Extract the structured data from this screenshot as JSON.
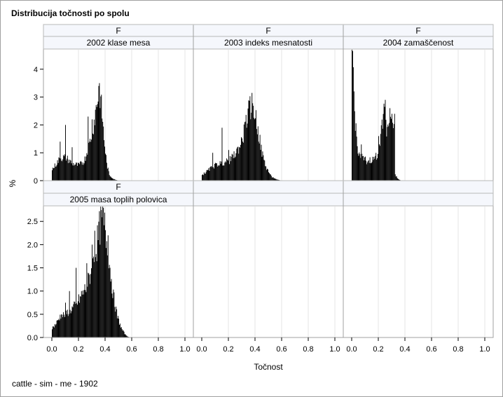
{
  "title": "Distribucija točnosti po spolu",
  "footnote": "cattle - sim - me - 1902",
  "chart_data": {
    "type": "bar",
    "xlabel": "Točnost",
    "ylabel": "%",
    "xlim": [
      0.0,
      1.0
    ],
    "xticks": [
      "0.0",
      "0.2",
      "0.4",
      "0.6",
      "0.8",
      "1.0"
    ],
    "row_header": "F",
    "rows": [
      {
        "ylim": [
          0,
          4.7
        ],
        "yticks": [
          "0",
          "1",
          "2",
          "3",
          "4"
        ],
        "panels": [
          {
            "header": "F",
            "label": "2002 klase mesa",
            "peaks": [
              [
                0.0,
                0.4
              ],
              [
                0.03,
                0.6
              ],
              [
                0.06,
                0.8
              ],
              [
                0.1,
                0.85
              ],
              [
                0.13,
                0.7
              ],
              [
                0.16,
                0.6
              ],
              [
                0.2,
                0.55
              ],
              [
                0.24,
                0.7
              ],
              [
                0.28,
                1.3
              ],
              [
                0.31,
                2.0
              ],
              [
                0.34,
                2.9
              ],
              [
                0.355,
                3.3
              ],
              [
                0.375,
                2.4
              ],
              [
                0.39,
                1.5
              ],
              [
                0.41,
                0.6
              ],
              [
                0.43,
                0.2
              ],
              [
                0.46,
                0.06
              ],
              [
                0.5,
                0.0
              ]
            ],
            "spikes": [
              [
                0.06,
                1.4
              ],
              [
                0.1,
                2.0
              ],
              [
                0.15,
                1.2
              ],
              [
                0.27,
                2.3
              ],
              [
                0.3,
                2.2
              ],
              [
                0.35,
                3.4
              ]
            ]
          },
          {
            "header": "F",
            "label": "2003 indeks mesnatosti",
            "peaks": [
              [
                0.0,
                0.2
              ],
              [
                0.04,
                0.35
              ],
              [
                0.08,
                0.5
              ],
              [
                0.12,
                0.6
              ],
              [
                0.16,
                0.65
              ],
              [
                0.2,
                0.7
              ],
              [
                0.24,
                0.9
              ],
              [
                0.28,
                1.2
              ],
              [
                0.31,
                1.6
              ],
              [
                0.34,
                2.3
              ],
              [
                0.37,
                2.75
              ],
              [
                0.39,
                2.6
              ],
              [
                0.42,
                1.8
              ],
              [
                0.45,
                1.0
              ],
              [
                0.48,
                0.5
              ],
              [
                0.52,
                0.15
              ],
              [
                0.56,
                0.04
              ],
              [
                0.6,
                0.0
              ]
            ],
            "spikes": [
              [
                0.08,
                1.0
              ],
              [
                0.15,
                1.9
              ],
              [
                0.2,
                1.1
              ],
              [
                0.32,
                2.1
              ],
              [
                0.36,
                2.8
              ]
            ]
          },
          {
            "header": "F",
            "label": "2004 zamaščenost",
            "peaks": [
              [
                0.0,
                4.6
              ],
              [
                0.01,
                3.8
              ],
              [
                0.02,
                2.4
              ],
              [
                0.04,
                1.2
              ],
              [
                0.06,
                0.9
              ],
              [
                0.09,
                0.75
              ],
              [
                0.12,
                0.7
              ],
              [
                0.16,
                0.75
              ],
              [
                0.19,
                0.9
              ],
              [
                0.21,
                1.5
              ],
              [
                0.23,
                2.2
              ],
              [
                0.245,
                2.7
              ],
              [
                0.26,
                1.9
              ],
              [
                0.28,
                2.2
              ],
              [
                0.3,
                2.3
              ],
              [
                0.315,
                2.1
              ],
              [
                0.325,
                0.2
              ],
              [
                0.35,
                0.05
              ],
              [
                0.37,
                0.0
              ]
            ],
            "spikes": [
              [
                0.005,
                4.65
              ],
              [
                0.07,
                1.3
              ],
              [
                0.2,
                1.6
              ],
              [
                0.25,
                2.9
              ],
              [
                0.3,
                2.4
              ],
              [
                0.32,
                2.4
              ]
            ]
          }
        ]
      },
      {
        "ylim": [
          0,
          2.82
        ],
        "yticks": [
          "0.0",
          "0.5",
          "1.0",
          "1.5",
          "2.0",
          "2.5"
        ],
        "panels": [
          {
            "header": "F",
            "label": "2005 masa toplih polovica",
            "peaks": [
              [
                0.0,
                0.2
              ],
              [
                0.03,
                0.3
              ],
              [
                0.06,
                0.45
              ],
              [
                0.1,
                0.5
              ],
              [
                0.14,
                0.6
              ],
              [
                0.18,
                0.7
              ],
              [
                0.22,
                0.9
              ],
              [
                0.26,
                1.1
              ],
              [
                0.3,
                1.5
              ],
              [
                0.33,
                1.9
              ],
              [
                0.36,
                2.4
              ],
              [
                0.38,
                2.55
              ],
              [
                0.4,
                2.3
              ],
              [
                0.43,
                1.6
              ],
              [
                0.46,
                0.9
              ],
              [
                0.49,
                0.45
              ],
              [
                0.52,
                0.2
              ],
              [
                0.55,
                0.06
              ],
              [
                0.58,
                0.0
              ]
            ],
            "spikes": [
              [
                0.07,
                0.5
              ],
              [
                0.1,
                0.75
              ],
              [
                0.13,
                1.0
              ],
              [
                0.18,
                1.5
              ],
              [
                0.22,
                1.0
              ],
              [
                0.26,
                1.6
              ],
              [
                0.3,
                2.0
              ],
              [
                0.32,
                2.3
              ],
              [
                0.35,
                2.1
              ],
              [
                0.37,
                2.5
              ],
              [
                0.38,
                2.7
              ],
              [
                0.42,
                2.2
              ]
            ]
          },
          {
            "header": "",
            "label": "",
            "empty": true
          },
          {
            "header": "",
            "label": "",
            "empty": true
          }
        ]
      }
    ]
  }
}
